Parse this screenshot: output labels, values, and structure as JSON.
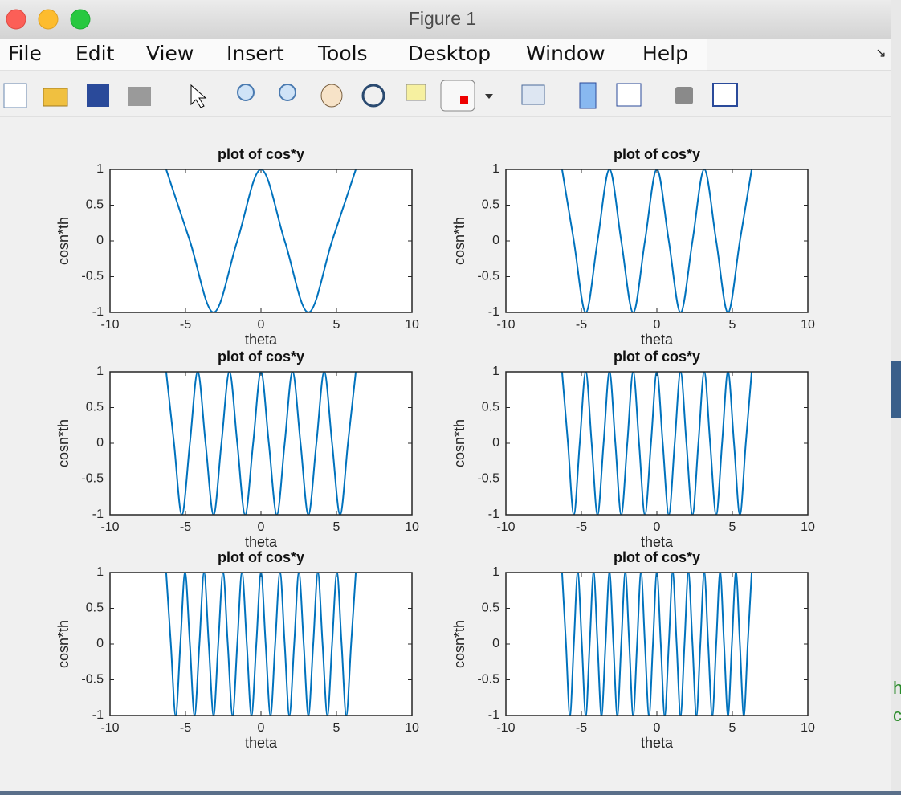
{
  "window": {
    "title": "Figure 1",
    "menu": [
      "File",
      "Edit",
      "View",
      "Insert",
      "Tools",
      "Desktop",
      "Window",
      "Help"
    ]
  },
  "background": {
    "text": [
      "h",
      "c"
    ]
  },
  "chart_data": [
    {
      "type": "line",
      "title": "plot of cos*y",
      "x_label": "theta",
      "y_label": "cosn*th",
      "color": "#0072bd",
      "x": [
        -6.28,
        -4.71,
        -3.14,
        -1.57,
        0,
        1.57,
        3.14,
        4.71,
        6.28
      ],
      "values": [
        1,
        0,
        -1,
        0,
        1,
        0,
        -1,
        0,
        1
      ],
      "xlim": [
        -10,
        10
      ],
      "ylim": [
        -1,
        1
      ],
      "xticks": [
        -10,
        -5,
        0,
        5,
        10
      ],
      "yticks": [
        -1,
        -0.5,
        0,
        0.5,
        1
      ]
    },
    {
      "type": "line",
      "title": "plot of cos*y",
      "x_label": "theta",
      "y_label": "cosn*th",
      "color": "#0072bd",
      "x": [
        -6.28,
        -5.5,
        -4.71,
        -3.93,
        -3.14,
        -2.36,
        -1.57,
        -0.79,
        0,
        0.79,
        1.57,
        2.36,
        3.14,
        3.93,
        4.71,
        5.5,
        6.28
      ],
      "values": [
        1,
        0,
        -1,
        0,
        1,
        0,
        -1,
        0,
        1,
        0,
        -1,
        0,
        1,
        0,
        -1,
        0,
        1
      ],
      "xlim": [
        -10,
        10
      ],
      "ylim": [
        -1,
        1
      ],
      "xticks": [
        -10,
        -5,
        0,
        5,
        10
      ],
      "yticks": [
        -1,
        -0.5,
        0,
        0.5,
        1
      ]
    },
    {
      "type": "line",
      "title": "plot of cos*y",
      "x_label": "theta",
      "y_label": "cosn*th",
      "color": "#0072bd",
      "x": [
        -6.28,
        -5.76,
        -5.24,
        -4.71,
        -4.19,
        -3.67,
        -3.14,
        -2.62,
        -2.09,
        -1.57,
        -1.05,
        -0.52,
        0,
        0.52,
        1.05,
        1.57,
        2.09,
        2.62,
        3.14,
        3.67,
        4.19,
        4.71,
        5.24,
        5.76,
        6.28
      ],
      "values": [
        1,
        0,
        -1,
        0,
        1,
        0,
        -1,
        0,
        1,
        0,
        -1,
        0,
        1,
        0,
        -1,
        0,
        1,
        0,
        -1,
        0,
        1,
        0,
        -1,
        0,
        1
      ],
      "xlim": [
        -10,
        10
      ],
      "ylim": [
        -1,
        1
      ],
      "xticks": [
        -10,
        -5,
        0,
        5,
        10
      ],
      "yticks": [
        -1,
        -0.5,
        0,
        0.5,
        1
      ]
    },
    {
      "type": "line",
      "title": "plot of cos*y",
      "x_label": "theta",
      "y_label": "cosn*th",
      "color": "#0072bd",
      "x": [
        -6.28,
        -5.89,
        -5.5,
        -5.11,
        -4.71,
        -4.32,
        -3.93,
        -3.53,
        -3.14,
        -2.75,
        -2.36,
        -1.96,
        -1.57,
        -1.18,
        -0.79,
        -0.39,
        0,
        0.39,
        0.79,
        1.18,
        1.57,
        1.96,
        2.36,
        2.75,
        3.14,
        3.53,
        3.93,
        4.32,
        4.71,
        5.11,
        5.5,
        5.89,
        6.28
      ],
      "values": [
        1,
        0,
        -1,
        0,
        1,
        0,
        -1,
        0,
        1,
        0,
        -1,
        0,
        1,
        0,
        -1,
        0,
        1,
        0,
        -1,
        0,
        1,
        0,
        -1,
        0,
        1,
        0,
        -1,
        0,
        1,
        0,
        -1,
        0,
        1
      ],
      "xlim": [
        -10,
        10
      ],
      "ylim": [
        -1,
        1
      ],
      "xticks": [
        -10,
        -5,
        0,
        5,
        10
      ],
      "yticks": [
        -1,
        -0.5,
        0,
        0.5,
        1
      ]
    },
    {
      "type": "line",
      "title": "plot of cos*y",
      "x_label": "theta",
      "y_label": "cosn*th",
      "color": "#0072bd",
      "x": [
        -6.28,
        -5.97,
        -5.65,
        -5.34,
        -5.03,
        -4.71,
        -4.4,
        -4.08,
        -3.77,
        -3.46,
        -3.14,
        -2.83,
        -2.51,
        -2.2,
        -1.88,
        -1.57,
        -1.26,
        -0.94,
        -0.63,
        -0.31,
        0,
        0.31,
        0.63,
        0.94,
        1.26,
        1.57,
        1.88,
        2.2,
        2.51,
        2.83,
        3.14,
        3.46,
        3.77,
        4.08,
        4.4,
        4.71,
        5.03,
        5.34,
        5.65,
        5.97,
        6.28
      ],
      "values": [
        1,
        0,
        -1,
        0,
        1,
        0,
        -1,
        0,
        1,
        0,
        -1,
        0,
        1,
        0,
        -1,
        0,
        1,
        0,
        -1,
        0,
        1,
        0,
        -1,
        0,
        1,
        0,
        -1,
        0,
        1,
        0,
        -1,
        0,
        1,
        0,
        -1,
        0,
        1,
        0,
        -1,
        0,
        1
      ],
      "xlim": [
        -10,
        10
      ],
      "ylim": [
        -1,
        1
      ],
      "xticks": [
        -10,
        -5,
        0,
        5,
        10
      ],
      "yticks": [
        -1,
        -0.5,
        0,
        0.5,
        1
      ]
    },
    {
      "type": "line",
      "title": "plot of cos*y",
      "x_label": "theta",
      "y_label": "cosn*th",
      "color": "#0072bd",
      "x": [
        -6.28,
        -6.02,
        -5.76,
        -5.5,
        -5.24,
        -4.97,
        -4.71,
        -4.45,
        -4.19,
        -3.93,
        -3.67,
        -3.4,
        -3.14,
        -2.88,
        -2.62,
        -2.36,
        -2.09,
        -1.83,
        -1.57,
        -1.31,
        -1.05,
        -0.79,
        -0.52,
        -0.26,
        0,
        0.26,
        0.52,
        0.79,
        1.05,
        1.31,
        1.57,
        1.83,
        2.09,
        2.36,
        2.62,
        2.88,
        3.14,
        3.4,
        3.67,
        3.93,
        4.19,
        4.45,
        4.71,
        4.97,
        5.24,
        5.5,
        5.76,
        6.02,
        6.28
      ],
      "values": [
        1,
        0,
        -1,
        0,
        1,
        0,
        -1,
        0,
        1,
        0,
        -1,
        0,
        1,
        0,
        -1,
        0,
        1,
        0,
        -1,
        0,
        1,
        0,
        -1,
        0,
        1,
        0,
        -1,
        0,
        1,
        0,
        -1,
        0,
        1,
        0,
        -1,
        0,
        1,
        0,
        -1,
        0,
        1,
        0,
        -1,
        0,
        1,
        0,
        -1,
        0,
        1
      ],
      "xlim": [
        -10,
        10
      ],
      "ylim": [
        -1,
        1
      ],
      "xticks": [
        -10,
        -5,
        0,
        5,
        10
      ],
      "yticks": [
        -1,
        -0.5,
        0,
        0.5,
        1
      ]
    }
  ]
}
